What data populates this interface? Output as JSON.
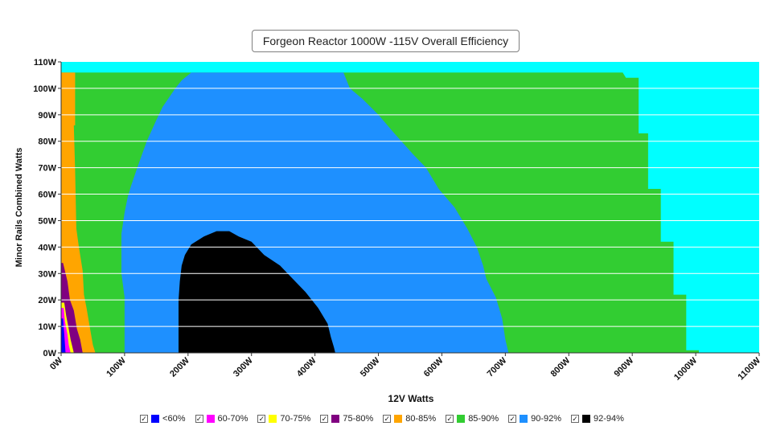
{
  "chart_data": {
    "type": "heatmap",
    "title": "Forgeon Reactor 1000W -115V Overall Efficiency",
    "xlabel": "12V Watts",
    "ylabel": "Minor Rails Combined Watts",
    "xlim": [
      0,
      1100
    ],
    "ylim": [
      0,
      110
    ],
    "x_ticks": [
      "0W",
      "100W",
      "200W",
      "300W",
      "400W",
      "500W",
      "600W",
      "700W",
      "800W",
      "900W",
      "1000W",
      "1100W"
    ],
    "y_ticks": [
      "0W",
      "10W",
      "20W",
      "30W",
      "40W",
      "50W",
      "60W",
      "70W",
      "80W",
      "90W",
      "100W",
      "110W"
    ],
    "legend_position": "bottom",
    "background_color": "#00ffff",
    "categories": [
      {
        "label": "<60%",
        "color": "#0000ff"
      },
      {
        "label": "60-70%",
        "color": "#ff00ff"
      },
      {
        "label": "70-75%",
        "color": "#ffff00"
      },
      {
        "label": "75-80%",
        "color": "#800080"
      },
      {
        "label": "80-85%",
        "color": "#ffa500"
      },
      {
        "label": "85-90%",
        "color": "#32cd32"
      },
      {
        "label": "90-92%",
        "color": "#1e90ff"
      },
      {
        "label": "92-94%",
        "color": "#000000"
      }
    ],
    "regions": [
      {
        "category": "85-90%",
        "boundary": [
          [
            0,
            0
          ],
          [
            0,
            106
          ],
          [
            885,
            106
          ],
          [
            890,
            104
          ],
          [
            910,
            104
          ],
          [
            910,
            83
          ],
          [
            925,
            83
          ],
          [
            925,
            62
          ],
          [
            945,
            62
          ],
          [
            945,
            42
          ],
          [
            965,
            42
          ],
          [
            965,
            22
          ],
          [
            985,
            22
          ],
          [
            985,
            1
          ],
          [
            1005,
            1
          ],
          [
            1005,
            0
          ]
        ]
      },
      {
        "category": "80-85%",
        "boundary": [
          [
            0,
            0
          ],
          [
            0,
            106
          ],
          [
            22,
            106
          ],
          [
            22,
            86
          ],
          [
            20,
            86
          ],
          [
            22,
            69
          ],
          [
            24,
            47
          ],
          [
            28,
            40
          ],
          [
            34,
            31
          ],
          [
            36,
            22
          ],
          [
            40,
            17
          ],
          [
            45,
            10
          ],
          [
            50,
            3
          ],
          [
            54,
            0
          ]
        ]
      },
      {
        "category": "75-80%",
        "boundary": [
          [
            0,
            0
          ],
          [
            0,
            34
          ],
          [
            3,
            34
          ],
          [
            10,
            27
          ],
          [
            14,
            20
          ],
          [
            20,
            16
          ],
          [
            25,
            9
          ],
          [
            30,
            5
          ],
          [
            34,
            0
          ]
        ]
      },
      {
        "category": "70-75%",
        "boundary": [
          [
            0,
            0
          ],
          [
            0,
            19
          ],
          [
            5,
            19
          ],
          [
            8,
            14
          ],
          [
            12,
            9
          ],
          [
            15,
            5
          ],
          [
            20,
            0
          ]
        ]
      },
      {
        "category": "60-70%",
        "boundary": [
          [
            0,
            0
          ],
          [
            0,
            17
          ],
          [
            4,
            17
          ],
          [
            6,
            12
          ],
          [
            10,
            7
          ],
          [
            12,
            3
          ],
          [
            15,
            0
          ]
        ]
      },
      {
        "category": "<60%",
        "boundary": [
          [
            0,
            0
          ],
          [
            0,
            13
          ],
          [
            3,
            13
          ],
          [
            5,
            7
          ],
          [
            7,
            0
          ]
        ]
      },
      {
        "category": "90-92%",
        "boundary": [
          [
            100,
            0
          ],
          [
            100,
            10
          ],
          [
            100,
            21
          ],
          [
            95,
            30
          ],
          [
            95,
            45
          ],
          [
            100,
            53
          ],
          [
            105,
            59
          ],
          [
            110,
            63
          ],
          [
            120,
            70
          ],
          [
            135,
            80
          ],
          [
            150,
            88
          ],
          [
            160,
            93
          ],
          [
            180,
            100
          ],
          [
            190,
            103
          ],
          [
            205,
            106
          ],
          [
            445,
            106
          ],
          [
            455,
            100
          ],
          [
            475,
            96
          ],
          [
            500,
            90
          ],
          [
            525,
            83
          ],
          [
            555,
            75
          ],
          [
            575,
            70
          ],
          [
            595,
            62
          ],
          [
            620,
            55
          ],
          [
            640,
            47
          ],
          [
            655,
            40
          ],
          [
            665,
            33
          ],
          [
            670,
            28
          ],
          [
            685,
            21
          ],
          [
            695,
            13
          ],
          [
            700,
            5
          ],
          [
            705,
            0
          ]
        ]
      },
      {
        "category": "92-94%",
        "boundary": [
          [
            185,
            0
          ],
          [
            185,
            12
          ],
          [
            185,
            20
          ],
          [
            187,
            27
          ],
          [
            190,
            33
          ],
          [
            195,
            37
          ],
          [
            205,
            41
          ],
          [
            225,
            44
          ],
          [
            245,
            46
          ],
          [
            265,
            46
          ],
          [
            280,
            44
          ],
          [
            300,
            42
          ],
          [
            320,
            37
          ],
          [
            345,
            33
          ],
          [
            365,
            28
          ],
          [
            385,
            23
          ],
          [
            405,
            17
          ],
          [
            420,
            11
          ],
          [
            425,
            6
          ],
          [
            430,
            2
          ],
          [
            432,
            0
          ]
        ]
      }
    ]
  }
}
